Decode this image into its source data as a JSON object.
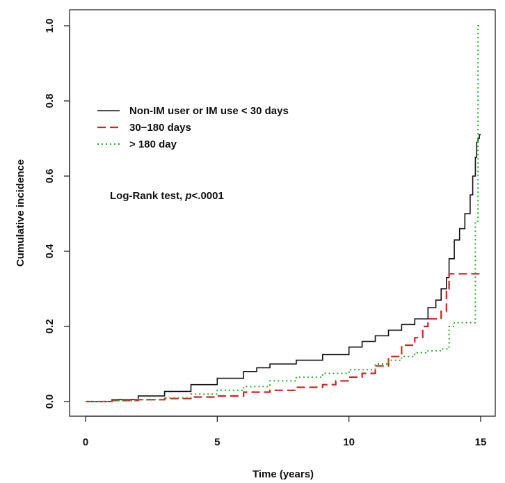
{
  "chart_data": {
    "type": "line",
    "step": true,
    "title": "",
    "xlabel": "Time (years)",
    "ylabel": "Cumulative incidence",
    "xlim": [
      0,
      15
    ],
    "ylim": [
      0,
      1
    ],
    "xticks": [
      "0",
      "5",
      "10",
      "15"
    ],
    "yticks": [
      "0.0",
      "0.2",
      "0.4",
      "0.6",
      "0.8",
      "1.0"
    ],
    "grid": false,
    "legend_position": "top-left",
    "annotation": {
      "prefix": "Log-Rank test, ",
      "italic": "p",
      "suffix": "<.0001"
    },
    "series": [
      {
        "name": "Non-IM user or IM use < 30 days",
        "color": "#111111",
        "style": "solid",
        "x": [
          0,
          1,
          2,
          3,
          4,
          5,
          6,
          6.5,
          7,
          8,
          9,
          10,
          10.5,
          11,
          11.5,
          12,
          12.5,
          13,
          13.3,
          13.5,
          13.7,
          13.8,
          14,
          14.2,
          14.4,
          14.6,
          14.7,
          14.8,
          14.85,
          14.9,
          14.95,
          15
        ],
        "y": [
          0,
          0.005,
          0.015,
          0.027,
          0.045,
          0.062,
          0.08,
          0.09,
          0.1,
          0.11,
          0.125,
          0.145,
          0.16,
          0.175,
          0.19,
          0.205,
          0.22,
          0.25,
          0.27,
          0.3,
          0.33,
          0.38,
          0.43,
          0.46,
          0.5,
          0.55,
          0.6,
          0.65,
          0.69,
          0.7,
          0.71,
          0.71
        ]
      },
      {
        "name": "30−180 days",
        "color": "#d42020",
        "style": "dashed",
        "x": [
          0,
          1,
          2,
          3,
          4,
          5,
          6,
          7,
          8,
          9,
          9.5,
          10,
          10.5,
          11,
          11.5,
          12,
          12.5,
          12.8,
          13,
          13.5,
          13.7,
          13.8,
          15
        ],
        "y": [
          0,
          0.003,
          0.005,
          0.008,
          0.012,
          0.015,
          0.025,
          0.03,
          0.038,
          0.045,
          0.055,
          0.065,
          0.075,
          0.095,
          0.12,
          0.15,
          0.17,
          0.2,
          0.22,
          0.24,
          0.3,
          0.34,
          0.34
        ]
      },
      {
        "name": "> 180 day",
        "color": "#22b022",
        "style": "dotted",
        "x": [
          0,
          1,
          2,
          3,
          4,
          5,
          6,
          7,
          8,
          9,
          10,
          11,
          11.5,
          12,
          12.5,
          13,
          13.5,
          13.8,
          14,
          14.5,
          14.8,
          14.9,
          15
        ],
        "y": [
          0,
          0.002,
          0.005,
          0.01,
          0.02,
          0.03,
          0.04,
          0.055,
          0.065,
          0.075,
          0.085,
          0.1,
          0.11,
          0.12,
          0.13,
          0.135,
          0.14,
          0.2,
          0.21,
          0.21,
          0.48,
          1.0,
          1.0
        ]
      }
    ]
  }
}
